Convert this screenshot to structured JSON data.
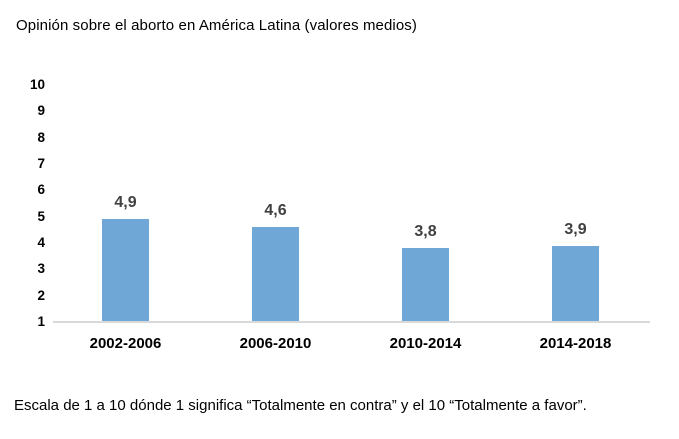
{
  "title": "Opinión sobre el aborto en América Latina (valores medios)",
  "footnote": "Escala de 1 a 10 dónde 1 significa “Totalmente en contra” y el 10 “Totalmente a favor”.",
  "colors": {
    "bar": "#6FA8D6",
    "axis_line": "#D9D9D9",
    "data_label": "#404040",
    "text": "#000000"
  },
  "chart_data": {
    "type": "bar",
    "title": "Opinión sobre el aborto en América Latina (valores medios)",
    "categories": [
      "2002-2006",
      "2006-2010",
      "2010-2014",
      "2014-2018"
    ],
    "values": [
      4.9,
      4.6,
      3.8,
      3.9
    ],
    "value_labels": [
      "4,9",
      "4,6",
      "3,8",
      "3,9"
    ],
    "xlabel": "",
    "ylabel": "",
    "ylim": [
      1,
      10
    ],
    "yticks": [
      1,
      2,
      3,
      4,
      5,
      6,
      7,
      8,
      9,
      10
    ],
    "grid": false,
    "legend": false,
    "annotation": "Escala de 1 a 10 dónde 1 significa “Totalmente en contra” y el 10 “Totalmente a favor”."
  }
}
